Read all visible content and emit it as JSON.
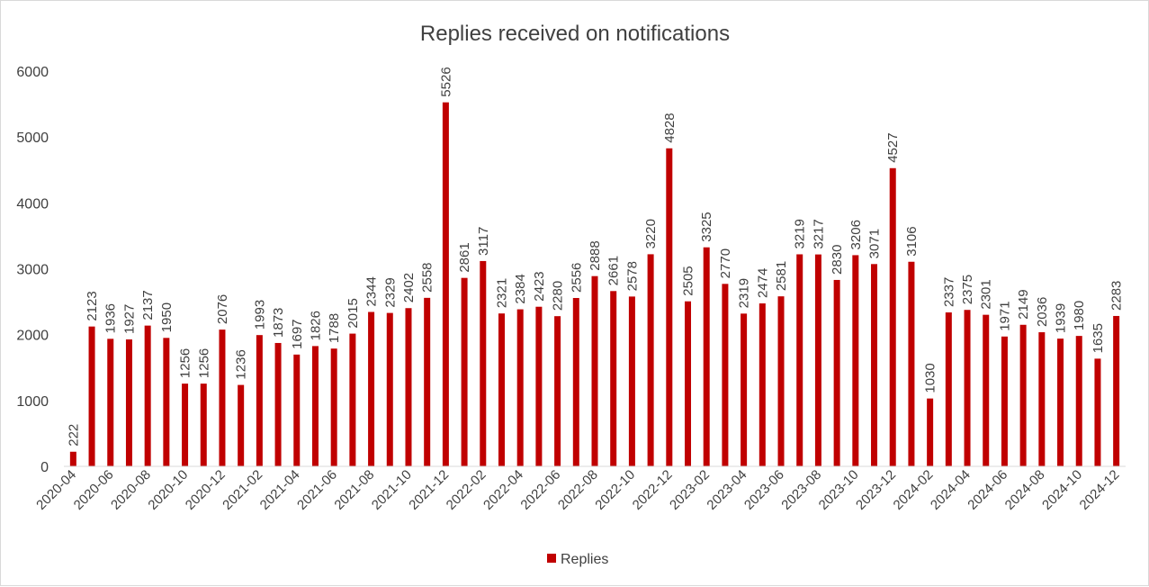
{
  "chart_data": {
    "type": "bar",
    "title": "Replies received on notifications",
    "xlabel": "",
    "ylabel": "",
    "ylim": [
      0,
      6000
    ],
    "yticks": [
      0,
      1000,
      2000,
      3000,
      4000,
      5000,
      6000
    ],
    "grid": false,
    "legend": "bottom",
    "color": "#c00000",
    "categories": [
      "2020-04",
      "2020-05",
      "2020-06",
      "2020-07",
      "2020-08",
      "2020-09",
      "2020-10",
      "2020-11",
      "2020-12",
      "2021-01",
      "2021-02",
      "2021-03",
      "2021-04",
      "2021-05",
      "2021-06",
      "2021-07",
      "2021-08",
      "2021-09",
      "2021-10",
      "2021-11",
      "2021-12",
      "2022-01",
      "2022-02",
      "2022-03",
      "2022-04",
      "2022-05",
      "2022-06",
      "2022-07",
      "2022-08",
      "2022-09",
      "2022-10",
      "2022-11",
      "2022-12",
      "2023-01",
      "2023-02",
      "2023-03",
      "2023-04",
      "2023-05",
      "2023-06",
      "2023-07",
      "2023-08",
      "2023-09",
      "2023-10",
      "2023-11",
      "2023-12",
      "2024-01",
      "2024-02",
      "2024-03",
      "2024-04",
      "2024-05",
      "2024-06",
      "2024-07",
      "2024-08",
      "2024-09",
      "2024-10",
      "2024-11",
      "2024-12"
    ],
    "tick_labels": [
      "2020-04",
      "2020-06",
      "2020-08",
      "2020-10",
      "2020-12",
      "2021-02",
      "2021-04",
      "2021-06",
      "2021-08",
      "2021-10",
      "2021-12",
      "2022-02",
      "2022-04",
      "2022-06",
      "2022-08",
      "2022-10",
      "2022-12",
      "2023-02",
      "2023-04",
      "2023-06",
      "2023-08",
      "2023-10",
      "2023-12",
      "2024-02",
      "2024-04",
      "2024-06",
      "2024-08",
      "2024-10",
      "2024-12"
    ],
    "series": [
      {
        "name": "Replies",
        "values": [
          222,
          2123,
          1936,
          1927,
          2137,
          1950,
          1256,
          1256,
          2076,
          1236,
          1993,
          1873,
          1697,
          1826,
          1788,
          2015,
          2344,
          2329,
          2402,
          2558,
          5526,
          2861,
          3117,
          2321,
          2384,
          2423,
          2280,
          2556,
          2888,
          2661,
          2578,
          3220,
          4828,
          2505,
          3325,
          2770,
          2319,
          2474,
          2581,
          3219,
          3217,
          2830,
          3206,
          3071,
          4527,
          3106,
          1030,
          2337,
          2375,
          2301,
          1971,
          2149,
          2036,
          1939,
          1980,
          1635,
          2283
        ]
      }
    ]
  }
}
